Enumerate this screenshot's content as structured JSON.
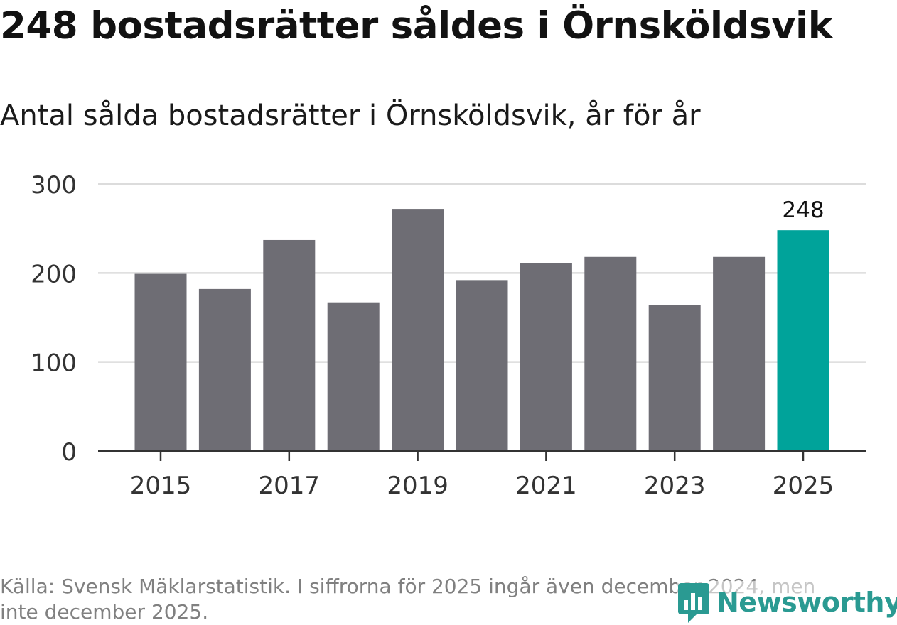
{
  "header": {
    "title": "248 bostadsrätter såldes i Örnsköldsvik",
    "subtitle": "Antal sålda bostadsrätter i Örnsköldsvik, år för år"
  },
  "footer": {
    "source": "Källa: Svensk Mäklarstatistik. I siffrorna för 2025 ingår även december 2024, men inte december 2025."
  },
  "brand": {
    "name": "Newsworthy",
    "icon": "newsworthy-logo-icon",
    "color": "#2a9a92"
  },
  "chart_data": {
    "type": "bar",
    "title": "Antal sålda bostadsrätter i Örnsköldsvik, år för år",
    "xlabel": "",
    "ylabel": "",
    "categories": [
      "2015",
      "2016",
      "2017",
      "2018",
      "2019",
      "2020",
      "2021",
      "2022",
      "2023",
      "2024",
      "2025"
    ],
    "values": [
      199,
      182,
      237,
      167,
      272,
      192,
      211,
      218,
      164,
      218,
      248
    ],
    "ylim": [
      0,
      300
    ],
    "yticks": [
      0,
      100,
      200,
      300
    ],
    "xtick_labels": [
      "2015",
      "2017",
      "2019",
      "2021",
      "2023",
      "2025"
    ],
    "grid": true,
    "bar_color": "#6e6d74",
    "highlight_color": "#00a39a",
    "highlight_category": "2025",
    "data_labels": [
      {
        "category": "2025",
        "text": "248"
      }
    ]
  }
}
